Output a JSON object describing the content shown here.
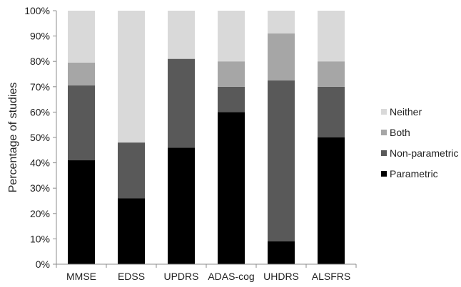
{
  "chart_data": {
    "type": "bar",
    "stacked": true,
    "percent_stacked": true,
    "title": "",
    "xlabel": "",
    "ylabel": "Percentage of studies",
    "ylim": [
      0,
      100
    ],
    "y_ticks": [
      0,
      10,
      20,
      30,
      40,
      50,
      60,
      70,
      80,
      90,
      100
    ],
    "y_tick_format": "percent",
    "grid": false,
    "legend_position": "right",
    "categories": [
      "MMSE",
      "EDSS",
      "UPDRS",
      "ADAS-cog",
      "UHDRS",
      "ALSFRS"
    ],
    "series": [
      {
        "name": "Parametric",
        "color": "#000000",
        "values": [
          41,
          26,
          46,
          60,
          9,
          50
        ]
      },
      {
        "name": "Non-parametric",
        "color": "#595959",
        "values": [
          29.5,
          22,
          35,
          10,
          63.5,
          20
        ]
      },
      {
        "name": "Both",
        "color": "#a6a6a6",
        "values": [
          9,
          0,
          0,
          10,
          18.5,
          10
        ]
      },
      {
        "name": "Neither",
        "color": "#d9d9d9",
        "values": [
          20.5,
          52,
          19,
          20,
          9,
          20
        ]
      }
    ],
    "legend_order": [
      "Neither",
      "Both",
      "Non-parametric",
      "Parametric"
    ]
  }
}
